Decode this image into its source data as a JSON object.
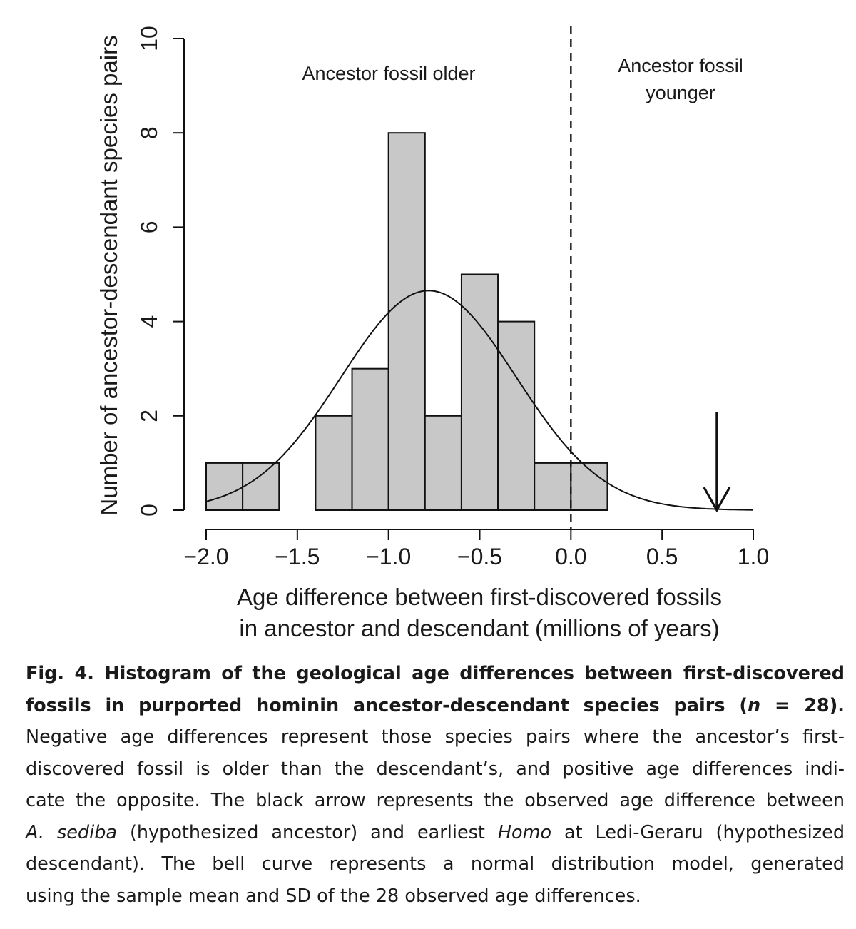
{
  "chart_data": {
    "type": "bar",
    "bin_edges": [
      -2.0,
      -1.8,
      -1.6,
      -1.4,
      -1.2,
      -1.0,
      -0.8,
      -0.6,
      -0.4,
      -0.2,
      0.0,
      0.2
    ],
    "values": [
      1,
      1,
      0,
      2,
      3,
      8,
      2,
      5,
      4,
      1,
      1
    ],
    "xlabel_line1": "Age difference between first-discovered fossils",
    "xlabel_line2": "in ancestor and descendant (millions of years)",
    "ylabel": "Number of ancestor-descendant species pairs",
    "xlim": [
      -2.0,
      1.0
    ],
    "ylim": [
      0,
      10
    ],
    "x_ticks": [
      "−2.0",
      "−1.5",
      "−1.0",
      "−0.5",
      "0.0",
      "0.5",
      "1.0"
    ],
    "y_ticks": [
      "0",
      "2",
      "4",
      "6",
      "8",
      "10"
    ],
    "x_tick_values": [
      -2.0,
      -1.5,
      -1.0,
      -0.5,
      0.0,
      0.5,
      1.0
    ],
    "y_tick_values": [
      0,
      2,
      4,
      6,
      8,
      10
    ],
    "normal_curve": {
      "mean": -0.78,
      "sd": 0.48,
      "n": 28,
      "bin_width": 0.2
    },
    "reference_line_x": 0.0,
    "arrow_x": 0.8,
    "annotation_left": "Ancestor fossil older",
    "annotation_right_line1": "Ancestor fossil",
    "annotation_right_line2": "younger",
    "bar_color": "#c8c8c8",
    "grid": false
  },
  "caption": {
    "lines": [
      [
        {
          "t": "Fig. 4.  Histogram of the geological age differences between first-discovered",
          "s": "bold"
        }
      ],
      [
        {
          "t": "fossils in purported hominin ancestor-descendant species pairs (",
          "s": "bold"
        },
        {
          "t": "n",
          "s": "bold ital"
        },
        {
          "t": " = 28).",
          "s": "bold"
        }
      ],
      [
        {
          "t": "Negative age differences represent those species pairs where the ancestor’s first-",
          "s": ""
        }
      ],
      [
        {
          "t": "discovered fossil is older than the descendant’s, and positive age differences indi-",
          "s": ""
        }
      ],
      [
        {
          "t": "cate the opposite. The black arrow represents the observed age difference between",
          "s": ""
        }
      ],
      [
        {
          "t": "A. sediba",
          "s": "ital"
        },
        {
          "t": " (hypothesized ancestor) and earliest ",
          "s": ""
        },
        {
          "t": "Homo",
          "s": "ital"
        },
        {
          "t": " at Ledi-Geraru (hypothesized",
          "s": ""
        }
      ],
      [
        {
          "t": "descendant). The bell curve represents a normal distribution model, generated",
          "s": ""
        }
      ],
      [
        {
          "t": "using the sample mean and SD of the 28 observed age differences.",
          "s": ""
        }
      ]
    ]
  }
}
